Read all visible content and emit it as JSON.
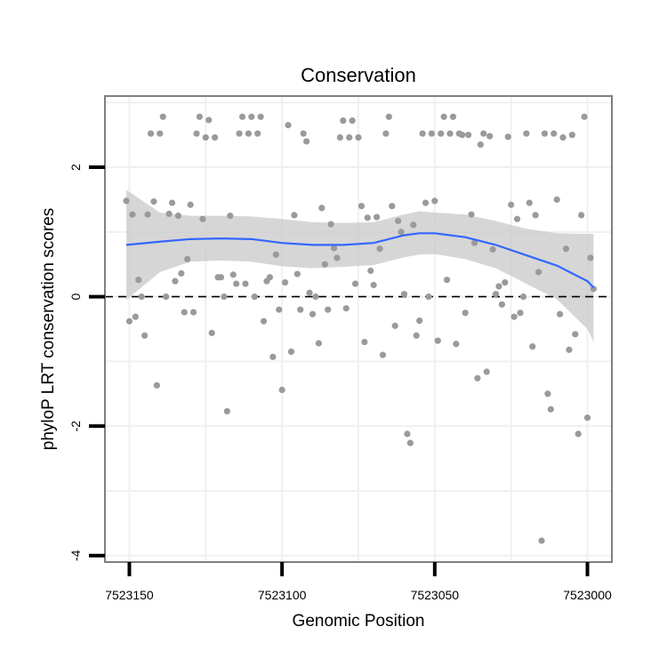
{
  "chart_data": {
    "type": "scatter",
    "title": "Conservation",
    "xlabel": "Genomic Position",
    "ylabel": "phyloP LRT conservation scores",
    "x_reversed": true,
    "xlim": [
      7523158,
      7522992
    ],
    "ylim": [
      -4.1,
      3.1
    ],
    "x_ticks": [
      7523150,
      7523100,
      7523050,
      7523000
    ],
    "y_ticks": [
      -4,
      -2,
      0,
      2
    ],
    "grid": true,
    "reference_line": {
      "y": 0,
      "style": "dashed"
    },
    "colors": {
      "points": "#9a9a9a",
      "smooth_line": "#3366ff",
      "confidence_band": "#c8c8c8",
      "panel_border": "#7f7f7f",
      "grid": "#f0f0f0"
    },
    "series": [
      {
        "type": "points",
        "points": [
          [
            7523151,
            1.48
          ],
          [
            7523150,
            -0.38
          ],
          [
            7523149,
            1.27
          ],
          [
            7523148,
            -0.31
          ],
          [
            7523147,
            0.26
          ],
          [
            7523146,
            0.0
          ],
          [
            7523145,
            -0.6
          ],
          [
            7523144,
            1.27
          ],
          [
            7523143,
            2.52
          ],
          [
            7523142,
            1.47
          ],
          [
            7523141,
            -1.37
          ],
          [
            7523140,
            2.52
          ],
          [
            7523139,
            2.78
          ],
          [
            7523138,
            0.0
          ],
          [
            7523137,
            1.28
          ],
          [
            7523136,
            1.45
          ],
          [
            7523135,
            0.24
          ],
          [
            7523134,
            1.25
          ],
          [
            7523133,
            0.36
          ],
          [
            7523132,
            -0.24
          ],
          [
            7523131,
            0.58
          ],
          [
            7523130,
            1.42
          ],
          [
            7523129,
            -0.24
          ],
          [
            7523128,
            2.52
          ],
          [
            7523127,
            2.78
          ],
          [
            7523126,
            1.2
          ],
          [
            7523125,
            2.46
          ],
          [
            7523124,
            2.73
          ],
          [
            7523123,
            -0.56
          ],
          [
            7523122,
            2.46
          ],
          [
            7523121,
            0.3
          ],
          [
            7523120,
            0.3
          ],
          [
            7523119,
            0.0
          ],
          [
            7523118,
            -1.77
          ],
          [
            7523117,
            1.25
          ],
          [
            7523116,
            0.34
          ],
          [
            7523115,
            0.2
          ],
          [
            7523114,
            2.52
          ],
          [
            7523113,
            2.78
          ],
          [
            7523112,
            0.2
          ],
          [
            7523111,
            2.52
          ],
          [
            7523110,
            2.78
          ],
          [
            7523109,
            0.0
          ],
          [
            7523108,
            2.52
          ],
          [
            7523107,
            2.78
          ],
          [
            7523106,
            -0.38
          ],
          [
            7523105,
            0.24
          ],
          [
            7523104,
            0.3
          ],
          [
            7523103,
            -0.93
          ],
          [
            7523102,
            0.65
          ],
          [
            7523101,
            -0.2
          ],
          [
            7523100,
            -1.44
          ],
          [
            7523099,
            0.22
          ],
          [
            7523098,
            2.65
          ],
          [
            7523097,
            -0.85
          ],
          [
            7523096,
            1.26
          ],
          [
            7523095,
            0.35
          ],
          [
            7523094,
            -0.2
          ],
          [
            7523093,
            2.52
          ],
          [
            7523092,
            2.4
          ],
          [
            7523091,
            0.06
          ],
          [
            7523090,
            -0.27
          ],
          [
            7523089,
            0.0
          ],
          [
            7523088,
            -0.72
          ],
          [
            7523087,
            1.37
          ],
          [
            7523086,
            0.5
          ],
          [
            7523085,
            -0.2
          ],
          [
            7523084,
            1.12
          ],
          [
            7523083,
            0.75
          ],
          [
            7523082,
            0.6
          ],
          [
            7523081,
            2.46
          ],
          [
            7523080,
            2.72
          ],
          [
            7523079,
            -0.18
          ],
          [
            7523078,
            2.46
          ],
          [
            7523077,
            2.72
          ],
          [
            7523076,
            0.2
          ],
          [
            7523075,
            2.46
          ],
          [
            7523074,
            1.4
          ],
          [
            7523073,
            -0.7
          ],
          [
            7523072,
            1.22
          ],
          [
            7523071,
            0.4
          ],
          [
            7523070,
            0.18
          ],
          [
            7523069,
            1.23
          ],
          [
            7523068,
            0.74
          ],
          [
            7523067,
            -0.9
          ],
          [
            7523066,
            2.52
          ],
          [
            7523065,
            2.78
          ],
          [
            7523064,
            1.4
          ],
          [
            7523063,
            -0.45
          ],
          [
            7523062,
            1.17
          ],
          [
            7523061,
            1.0
          ],
          [
            7523060,
            0.04
          ],
          [
            7523059,
            -2.12
          ],
          [
            7523058,
            -2.26
          ],
          [
            7523057,
            1.11
          ],
          [
            7523056,
            -0.6
          ],
          [
            7523055,
            -0.37
          ],
          [
            7523054,
            2.52
          ],
          [
            7523053,
            1.45
          ],
          [
            7523052,
            0.0
          ],
          [
            7523051,
            2.52
          ],
          [
            7523050,
            1.48
          ],
          [
            7523049,
            -0.68
          ],
          [
            7523048,
            2.52
          ],
          [
            7523047,
            2.78
          ],
          [
            7523046,
            0.26
          ],
          [
            7523045,
            2.52
          ],
          [
            7523044,
            2.78
          ],
          [
            7523043,
            -0.73
          ],
          [
            7523042,
            2.52
          ],
          [
            7523041,
            2.5
          ],
          [
            7523040,
            -0.25
          ],
          [
            7523039,
            2.5
          ],
          [
            7523038,
            1.27
          ],
          [
            7523037,
            0.83
          ],
          [
            7523036,
            -1.26
          ],
          [
            7523035,
            2.35
          ],
          [
            7523034,
            2.52
          ],
          [
            7523033,
            -1.16
          ],
          [
            7523032,
            2.48
          ],
          [
            7523031,
            0.73
          ],
          [
            7523030,
            0.04
          ],
          [
            7523029,
            0.16
          ],
          [
            7523028,
            -0.12
          ],
          [
            7523027,
            0.22
          ],
          [
            7523026,
            2.47
          ],
          [
            7523025,
            1.42
          ],
          [
            7523024,
            -0.31
          ],
          [
            7523023,
            1.2
          ],
          [
            7523022,
            -0.25
          ],
          [
            7523021,
            0.0
          ],
          [
            7523020,
            2.52
          ],
          [
            7523019,
            1.45
          ],
          [
            7523018,
            -0.77
          ],
          [
            7523017,
            1.26
          ],
          [
            7523016,
            0.38
          ],
          [
            7523015,
            -3.77
          ],
          [
            7523014,
            2.52
          ],
          [
            7523013,
            -1.5
          ],
          [
            7523012,
            -1.74
          ],
          [
            7523011,
            2.52
          ],
          [
            7523010,
            1.5
          ],
          [
            7523009,
            -0.27
          ],
          [
            7523008,
            2.46
          ],
          [
            7523007,
            0.74
          ],
          [
            7523006,
            -0.82
          ],
          [
            7523005,
            2.5
          ],
          [
            7523004,
            -0.58
          ],
          [
            7523003,
            -2.12
          ],
          [
            7523002,
            1.26
          ],
          [
            7523001,
            2.78
          ],
          [
            7523000,
            -1.87
          ],
          [
            7522999,
            0.6
          ],
          [
            7522998,
            0.12
          ]
        ]
      },
      {
        "type": "smooth",
        "points": [
          [
            7523151,
            0.8
          ],
          [
            7523140,
            0.85
          ],
          [
            7523130,
            0.89
          ],
          [
            7523120,
            0.9
          ],
          [
            7523110,
            0.89
          ],
          [
            7523100,
            0.83
          ],
          [
            7523090,
            0.8
          ],
          [
            7523080,
            0.8
          ],
          [
            7523070,
            0.83
          ],
          [
            7523060,
            0.95
          ],
          [
            7523055,
            0.98
          ],
          [
            7523050,
            0.98
          ],
          [
            7523040,
            0.92
          ],
          [
            7523030,
            0.8
          ],
          [
            7523020,
            0.64
          ],
          [
            7523010,
            0.48
          ],
          [
            7523000,
            0.24
          ],
          [
            7522998,
            0.14
          ]
        ],
        "band_upper": [
          [
            7523151,
            1.65
          ],
          [
            7523140,
            1.3
          ],
          [
            7523130,
            1.25
          ],
          [
            7523120,
            1.25
          ],
          [
            7523110,
            1.24
          ],
          [
            7523100,
            1.2
          ],
          [
            7523090,
            1.15
          ],
          [
            7523080,
            1.14
          ],
          [
            7523070,
            1.15
          ],
          [
            7523060,
            1.27
          ],
          [
            7523055,
            1.32
          ],
          [
            7523050,
            1.3
          ],
          [
            7523040,
            1.27
          ],
          [
            7523030,
            1.17
          ],
          [
            7523020,
            1.05
          ],
          [
            7523010,
            0.98
          ],
          [
            7523000,
            0.97
          ],
          [
            7522998,
            0.97
          ]
        ],
        "band_lower": [
          [
            7523151,
            -0.05
          ],
          [
            7523140,
            0.38
          ],
          [
            7523130,
            0.54
          ],
          [
            7523120,
            0.56
          ],
          [
            7523110,
            0.54
          ],
          [
            7523100,
            0.47
          ],
          [
            7523090,
            0.44
          ],
          [
            7523080,
            0.46
          ],
          [
            7523070,
            0.49
          ],
          [
            7523060,
            0.61
          ],
          [
            7523055,
            0.65
          ],
          [
            7523050,
            0.66
          ],
          [
            7523040,
            0.58
          ],
          [
            7523030,
            0.44
          ],
          [
            7523020,
            0.2
          ],
          [
            7523010,
            -0.04
          ],
          [
            7523000,
            -0.5
          ],
          [
            7522998,
            -0.7
          ]
        ]
      }
    ]
  }
}
